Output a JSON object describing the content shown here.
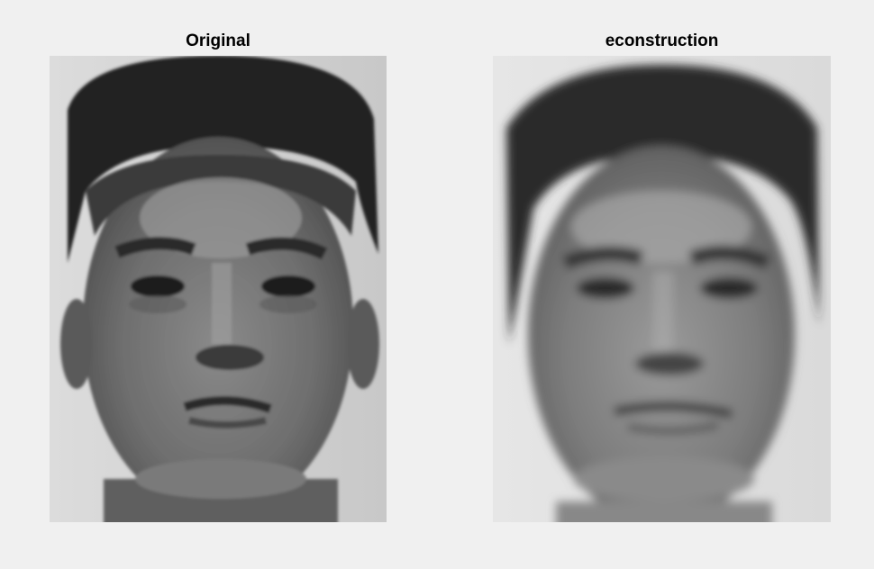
{
  "panels": [
    {
      "title": "Original",
      "image": "grayscale-face-photo"
    },
    {
      "title": "econstruction",
      "image": "grayscale-face-reconstruction-blurred"
    }
  ]
}
